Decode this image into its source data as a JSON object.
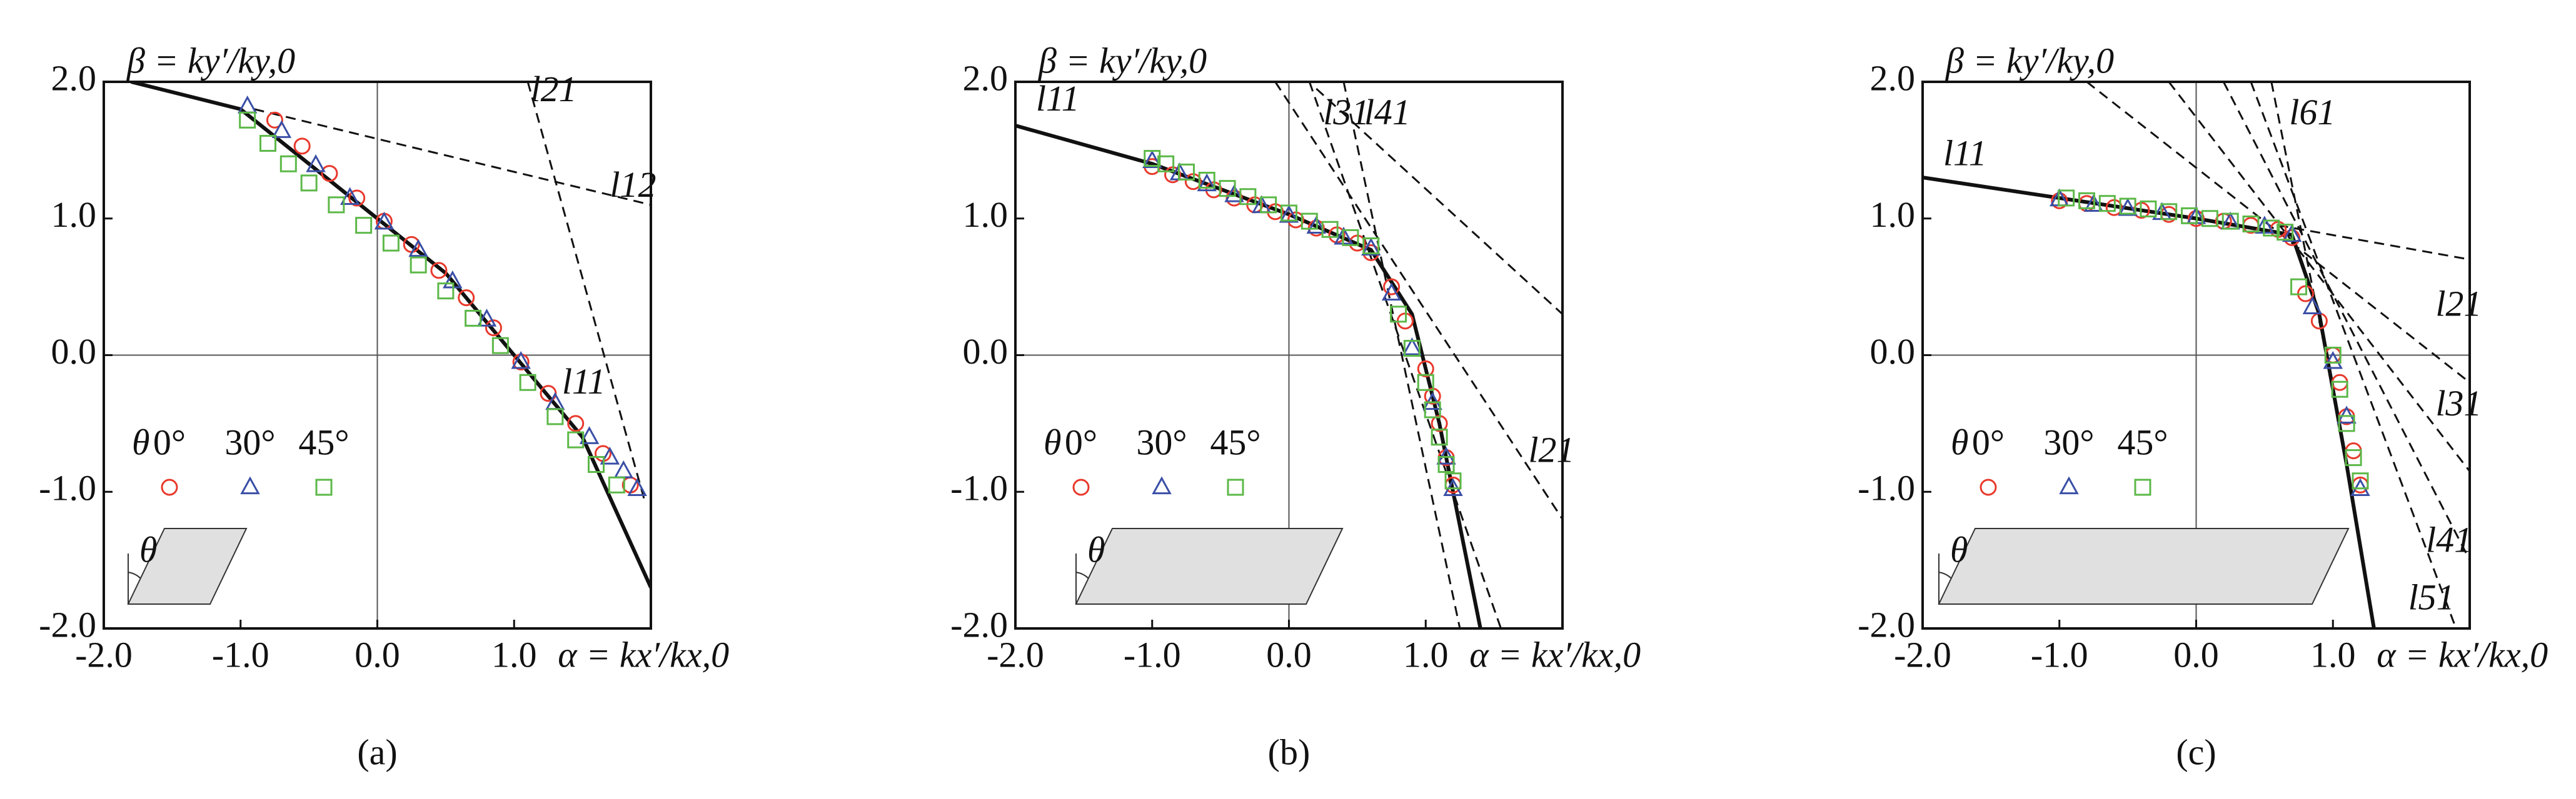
{
  "chart_data": [
    {
      "type": "scatter",
      "panel_label": "(a)",
      "x_label": "α = kx′/kx,0",
      "y_label": "β = ky′/ky,0",
      "xlim": [
        -2,
        2
      ],
      "ylim": [
        -2,
        2
      ],
      "xticks": [
        {
          "value": -2,
          "label": "-2.0"
        },
        {
          "value": -1,
          "label": "-1.0"
        },
        {
          "value": 0,
          "label": "0.0"
        },
        {
          "value": 1,
          "label": "1.0"
        }
      ],
      "yticks": [
        {
          "value": -2,
          "label": "-2.0"
        },
        {
          "value": -1,
          "label": "-1.0"
        },
        {
          "value": 0,
          "label": "0.0"
        },
        {
          "value": 1,
          "label": "1.0"
        },
        {
          "value": 2,
          "label": "2.0"
        }
      ],
      "zero_lines": true,
      "legend_title": "θ",
      "inset_label": "θ",
      "series": [
        {
          "name": "0°",
          "color": "#e8392c",
          "marker": "circle",
          "x": [
            -0.75,
            -0.55,
            -0.35,
            -0.15,
            0.05,
            0.25,
            0.45,
            0.65,
            0.85,
            1.05,
            1.25,
            1.45,
            1.65,
            1.85
          ],
          "y": [
            1.72,
            1.53,
            1.33,
            1.15,
            0.98,
            0.81,
            0.62,
            0.42,
            0.2,
            -0.05,
            -0.28,
            -0.5,
            -0.72,
            -0.95
          ]
        },
        {
          "name": "30°",
          "color": "#3a4fa6",
          "marker": "triangle",
          "x": [
            -0.95,
            -0.7,
            -0.45,
            -0.2,
            0.05,
            0.3,
            0.55,
            0.8,
            1.05,
            1.3,
            1.55,
            1.7,
            1.8,
            1.9
          ],
          "y": [
            1.82,
            1.64,
            1.39,
            1.15,
            0.97,
            0.77,
            0.54,
            0.26,
            -0.05,
            -0.35,
            -0.6,
            -0.75,
            -0.85,
            -0.98
          ]
        },
        {
          "name": "45°",
          "color": "#5cb848",
          "marker": "square",
          "x": [
            -0.95,
            -0.8,
            -0.65,
            -0.5,
            -0.3,
            -0.1,
            0.1,
            0.3,
            0.5,
            0.7,
            0.9,
            1.1,
            1.3,
            1.45,
            1.6,
            1.75
          ],
          "y": [
            1.72,
            1.55,
            1.4,
            1.26,
            1.1,
            0.95,
            0.82,
            0.66,
            0.47,
            0.27,
            0.07,
            -0.2,
            -0.45,
            -0.62,
            -0.8,
            -0.95
          ]
        }
      ],
      "lines": [
        {
          "label": "l11",
          "style": "solid",
          "x": [
            -1.8,
            -1,
            -0.5,
            0,
            0.5,
            1,
            1.5,
            2
          ],
          "y": [
            2,
            1.8,
            1.4,
            1.0,
            0.6,
            0,
            -0.6,
            -1.7
          ]
        },
        {
          "label": "l12",
          "style": "dashed",
          "x": [
            -0.9,
            2
          ],
          "y": [
            1.8,
            1.1
          ]
        },
        {
          "label": "l21",
          "style": "dashed",
          "x": [
            1.1,
            1.95
          ],
          "y": [
            2,
            -1.05
          ]
        }
      ]
    },
    {
      "type": "scatter",
      "panel_label": "(b)",
      "x_label": "α = kx′/kx,0",
      "y_label": "β = ky′/ky,0",
      "xlim": [
        -2,
        2
      ],
      "ylim": [
        -2,
        2
      ],
      "xticks": [
        {
          "value": -2,
          "label": "-2.0"
        },
        {
          "value": -1,
          "label": "-1.0"
        },
        {
          "value": 0,
          "label": "0.0"
        },
        {
          "value": 1,
          "label": "1.0"
        }
      ],
      "yticks": [
        {
          "value": -2,
          "label": "-2.0"
        },
        {
          "value": -1,
          "label": "-1.0"
        },
        {
          "value": 0,
          "label": "0.0"
        },
        {
          "value": 1,
          "label": "1.0"
        },
        {
          "value": 2,
          "label": "2.0"
        }
      ],
      "zero_lines": true,
      "legend_title": "θ",
      "inset_label": "θ",
      "series": [
        {
          "name": "0°",
          "color": "#e8392c",
          "marker": "circle",
          "x": [
            -1,
            -0.85,
            -0.7,
            -0.55,
            -0.4,
            -0.25,
            -0.1,
            0.05,
            0.2,
            0.35,
            0.5,
            0.6,
            0.75,
            0.85,
            1.0,
            1.05,
            1.1,
            1.15,
            1.2
          ],
          "y": [
            1.38,
            1.32,
            1.27,
            1.21,
            1.15,
            1.1,
            1.05,
            0.99,
            0.93,
            0.88,
            0.82,
            0.75,
            0.5,
            0.25,
            -0.1,
            -0.3,
            -0.5,
            -0.75,
            -0.95
          ]
        },
        {
          "name": "30°",
          "color": "#3a4fa6",
          "marker": "triangle",
          "x": [
            -1,
            -0.8,
            -0.6,
            -0.4,
            -0.2,
            0,
            0.2,
            0.4,
            0.6,
            0.75,
            0.9,
            1.05,
            1.15,
            1.2
          ],
          "y": [
            1.42,
            1.33,
            1.25,
            1.17,
            1.09,
            1.02,
            0.94,
            0.86,
            0.78,
            0.45,
            0.05,
            -0.35,
            -0.75,
            -0.98
          ]
        },
        {
          "name": "45°",
          "color": "#5cb848",
          "marker": "square",
          "x": [
            -1,
            -0.9,
            -0.75,
            -0.6,
            -0.45,
            -0.3,
            -0.15,
            0,
            0.15,
            0.3,
            0.45,
            0.6,
            0.8,
            0.9,
            1.0,
            1.05,
            1.1,
            1.15,
            1.2
          ],
          "y": [
            1.44,
            1.4,
            1.34,
            1.28,
            1.22,
            1.16,
            1.1,
            1.04,
            0.98,
            0.92,
            0.86,
            0.8,
            0.3,
            0.05,
            -0.2,
            -0.4,
            -0.6,
            -0.8,
            -0.92
          ]
        }
      ],
      "lines": [
        {
          "label": "l11",
          "style": "solid",
          "x": [
            -2,
            -1,
            0,
            0.6,
            0.9,
            1.1,
            1.4
          ],
          "y": [
            1.68,
            1.4,
            1.03,
            0.77,
            0.3,
            -0.5,
            -2
          ]
        },
        {
          "label": "l31",
          "style": "dashed",
          "x": [
            0.15,
            1.55
          ],
          "y": [
            2,
            -2
          ]
        },
        {
          "label": "l41",
          "style": "dashed",
          "x": [
            0.4,
            1.25
          ],
          "y": [
            2,
            -2
          ]
        },
        {
          "label": "l21",
          "style": "dashed",
          "x": [
            -0.1,
            2
          ],
          "y": [
            2,
            -1.2
          ]
        },
        {
          "style": "dashed",
          "x": [
            0.2,
            2
          ],
          "y": [
            1.95,
            0.3
          ]
        }
      ]
    },
    {
      "type": "scatter",
      "panel_label": "(c)",
      "x_label": "α = kx′/kx,0",
      "y_label": "β = ky′/ky,0",
      "xlim": [
        -2,
        2
      ],
      "ylim": [
        -2,
        2
      ],
      "xticks": [
        {
          "value": -2,
          "label": "-2.0"
        },
        {
          "value": -1,
          "label": "-1.0"
        },
        {
          "value": 0,
          "label": "0.0"
        },
        {
          "value": 1,
          "label": "1.0"
        }
      ],
      "yticks": [
        {
          "value": -2,
          "label": "-2.0"
        },
        {
          "value": -1,
          "label": "-1.0"
        },
        {
          "value": 0,
          "label": "0.0"
        },
        {
          "value": 1,
          "label": "1.0"
        },
        {
          "value": 2,
          "label": "2.0"
        }
      ],
      "zero_lines": true,
      "legend_title": "θ",
      "inset_label": "θ",
      "series": [
        {
          "name": "0°",
          "color": "#e8392c",
          "marker": "circle",
          "x": [
            -1,
            -0.8,
            -0.6,
            -0.4,
            -0.2,
            0,
            0.2,
            0.4,
            0.6,
            0.7,
            0.8,
            0.9,
            1.0,
            1.05,
            1.1,
            1.15,
            1.2
          ],
          "y": [
            1.13,
            1.11,
            1.08,
            1.06,
            1.03,
            1.0,
            0.98,
            0.95,
            0.92,
            0.86,
            0.45,
            0.25,
            0.0,
            -0.2,
            -0.45,
            -0.7,
            -0.95
          ]
        },
        {
          "name": "30°",
          "color": "#3a4fa6",
          "marker": "triangle",
          "x": [
            -1,
            -0.75,
            -0.5,
            -0.25,
            0,
            0.25,
            0.5,
            0.7,
            0.85,
            1.0,
            1.1,
            1.2
          ],
          "y": [
            1.14,
            1.1,
            1.07,
            1.04,
            1.01,
            0.97,
            0.94,
            0.88,
            0.35,
            -0.05,
            -0.45,
            -0.98
          ]
        },
        {
          "name": "45°",
          "color": "#5cb848",
          "marker": "square",
          "x": [
            -0.95,
            -0.8,
            -0.65,
            -0.5,
            -0.35,
            -0.2,
            -0.05,
            0.1,
            0.25,
            0.4,
            0.55,
            0.65,
            0.75,
            1.0,
            1.05,
            1.1,
            1.15,
            1.2
          ],
          "y": [
            1.15,
            1.13,
            1.11,
            1.09,
            1.07,
            1.05,
            1.02,
            1.0,
            0.98,
            0.96,
            0.93,
            0.9,
            0.5,
            0.0,
            -0.25,
            -0.5,
            -0.75,
            -0.92
          ]
        }
      ],
      "lines": [
        {
          "label": "l11",
          "style": "solid",
          "x": [
            -2,
            -1,
            0,
            0.7,
            0.9,
            1.1,
            1.3
          ],
          "y": [
            1.3,
            1.15,
            1.0,
            0.88,
            0.3,
            -0.8,
            -2
          ]
        },
        {
          "label": "l61",
          "style": "dashed",
          "x": [
            0.55,
            1.05
          ],
          "y": [
            2,
            -0.5
          ]
        },
        {
          "label": "l21",
          "style": "dashed",
          "x": [
            -0.8,
            2
          ],
          "y": [
            2,
            -0.2
          ]
        },
        {
          "label": "l31",
          "style": "dashed",
          "x": [
            -0.2,
            2
          ],
          "y": [
            2,
            -0.85
          ]
        },
        {
          "label": "l41",
          "style": "dashed",
          "x": [
            0.2,
            2
          ],
          "y": [
            2,
            -1.5
          ]
        },
        {
          "label": "l51",
          "style": "dashed",
          "x": [
            0.4,
            1.9
          ],
          "y": [
            2,
            -2
          ]
        },
        {
          "style": "dashed",
          "x": [
            0.6,
            2
          ],
          "y": [
            0.95,
            0.7
          ]
        }
      ]
    }
  ]
}
